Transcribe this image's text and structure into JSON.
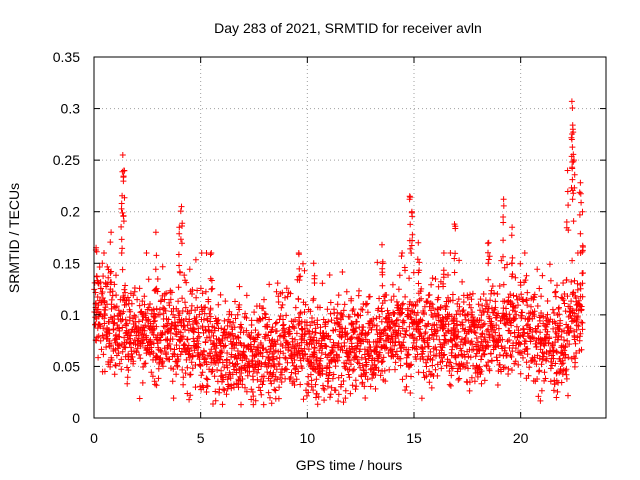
{
  "chart_data": {
    "type": "scatter",
    "title": "Day 283 of 2021, SRMTID for receiver avln",
    "xlabel": "GPS time / hours",
    "ylabel": "SRMTID / TECUs",
    "xlim": [
      0,
      24
    ],
    "ylim": [
      0,
      0.35
    ],
    "xticks": [
      0,
      5,
      10,
      15,
      20
    ],
    "xtick_labels": [
      "0",
      "5",
      "10",
      "15",
      "20"
    ],
    "yticks": [
      0,
      0.05,
      0.1,
      0.15,
      0.2,
      0.25,
      0.3,
      0.35
    ],
    "ytick_labels": [
      "0",
      "0.05",
      "0.1",
      "0.15",
      "0.2",
      "0.25",
      "0.3",
      "0.35"
    ],
    "grid": true,
    "marker": "plus",
    "color": "#ff0000",
    "x_sample_step_hours": 0.03333,
    "series": [
      {
        "name": "SRMTID",
        "baseline_profile": [
          [
            0,
            0.1
          ],
          [
            1,
            0.085
          ],
          [
            2,
            0.08
          ],
          [
            3,
            0.078
          ],
          [
            4,
            0.08
          ],
          [
            5,
            0.078
          ],
          [
            6,
            0.06
          ],
          [
            7,
            0.06
          ],
          [
            8,
            0.065
          ],
          [
            9,
            0.07
          ],
          [
            10,
            0.065
          ],
          [
            11,
            0.065
          ],
          [
            12,
            0.07
          ],
          [
            13,
            0.075
          ],
          [
            14,
            0.08
          ],
          [
            15,
            0.08
          ],
          [
            16,
            0.08
          ],
          [
            17,
            0.078
          ],
          [
            18,
            0.075
          ],
          [
            19,
            0.085
          ],
          [
            20,
            0.09
          ],
          [
            21,
            0.07
          ],
          [
            22,
            0.08
          ],
          [
            22.9,
            0.1
          ]
        ],
        "spikes": [
          {
            "x": 0.1,
            "y": 0.165
          },
          {
            "x": 0.8,
            "y": 0.18
          },
          {
            "x": 1.35,
            "y": 0.255
          },
          {
            "x": 1.4,
            "y": 0.24
          },
          {
            "x": 1.3,
            "y": 0.208
          },
          {
            "x": 2.9,
            "y": 0.18
          },
          {
            "x": 4.1,
            "y": 0.205
          },
          {
            "x": 4.0,
            "y": 0.185
          },
          {
            "x": 5.5,
            "y": 0.16
          },
          {
            "x": 9.6,
            "y": 0.16
          },
          {
            "x": 10.3,
            "y": 0.15
          },
          {
            "x": 13.5,
            "y": 0.168
          },
          {
            "x": 14.8,
            "y": 0.215
          },
          {
            "x": 14.9,
            "y": 0.2
          },
          {
            "x": 15.2,
            "y": 0.17
          },
          {
            "x": 16.4,
            "y": 0.16
          },
          {
            "x": 16.9,
            "y": 0.188
          },
          {
            "x": 18.5,
            "y": 0.17
          },
          {
            "x": 19.2,
            "y": 0.212
          },
          {
            "x": 19.6,
            "y": 0.185
          },
          {
            "x": 22.2,
            "y": 0.24
          },
          {
            "x": 22.4,
            "y": 0.307
          },
          {
            "x": 22.45,
            "y": 0.28
          },
          {
            "x": 22.4,
            "y": 0.27
          },
          {
            "x": 22.5,
            "y": 0.25
          },
          {
            "x": 22.8,
            "y": 0.228
          },
          {
            "x": 22.9,
            "y": 0.2
          }
        ],
        "min_observed": 0.013,
        "max_observed": 0.307
      }
    ]
  }
}
